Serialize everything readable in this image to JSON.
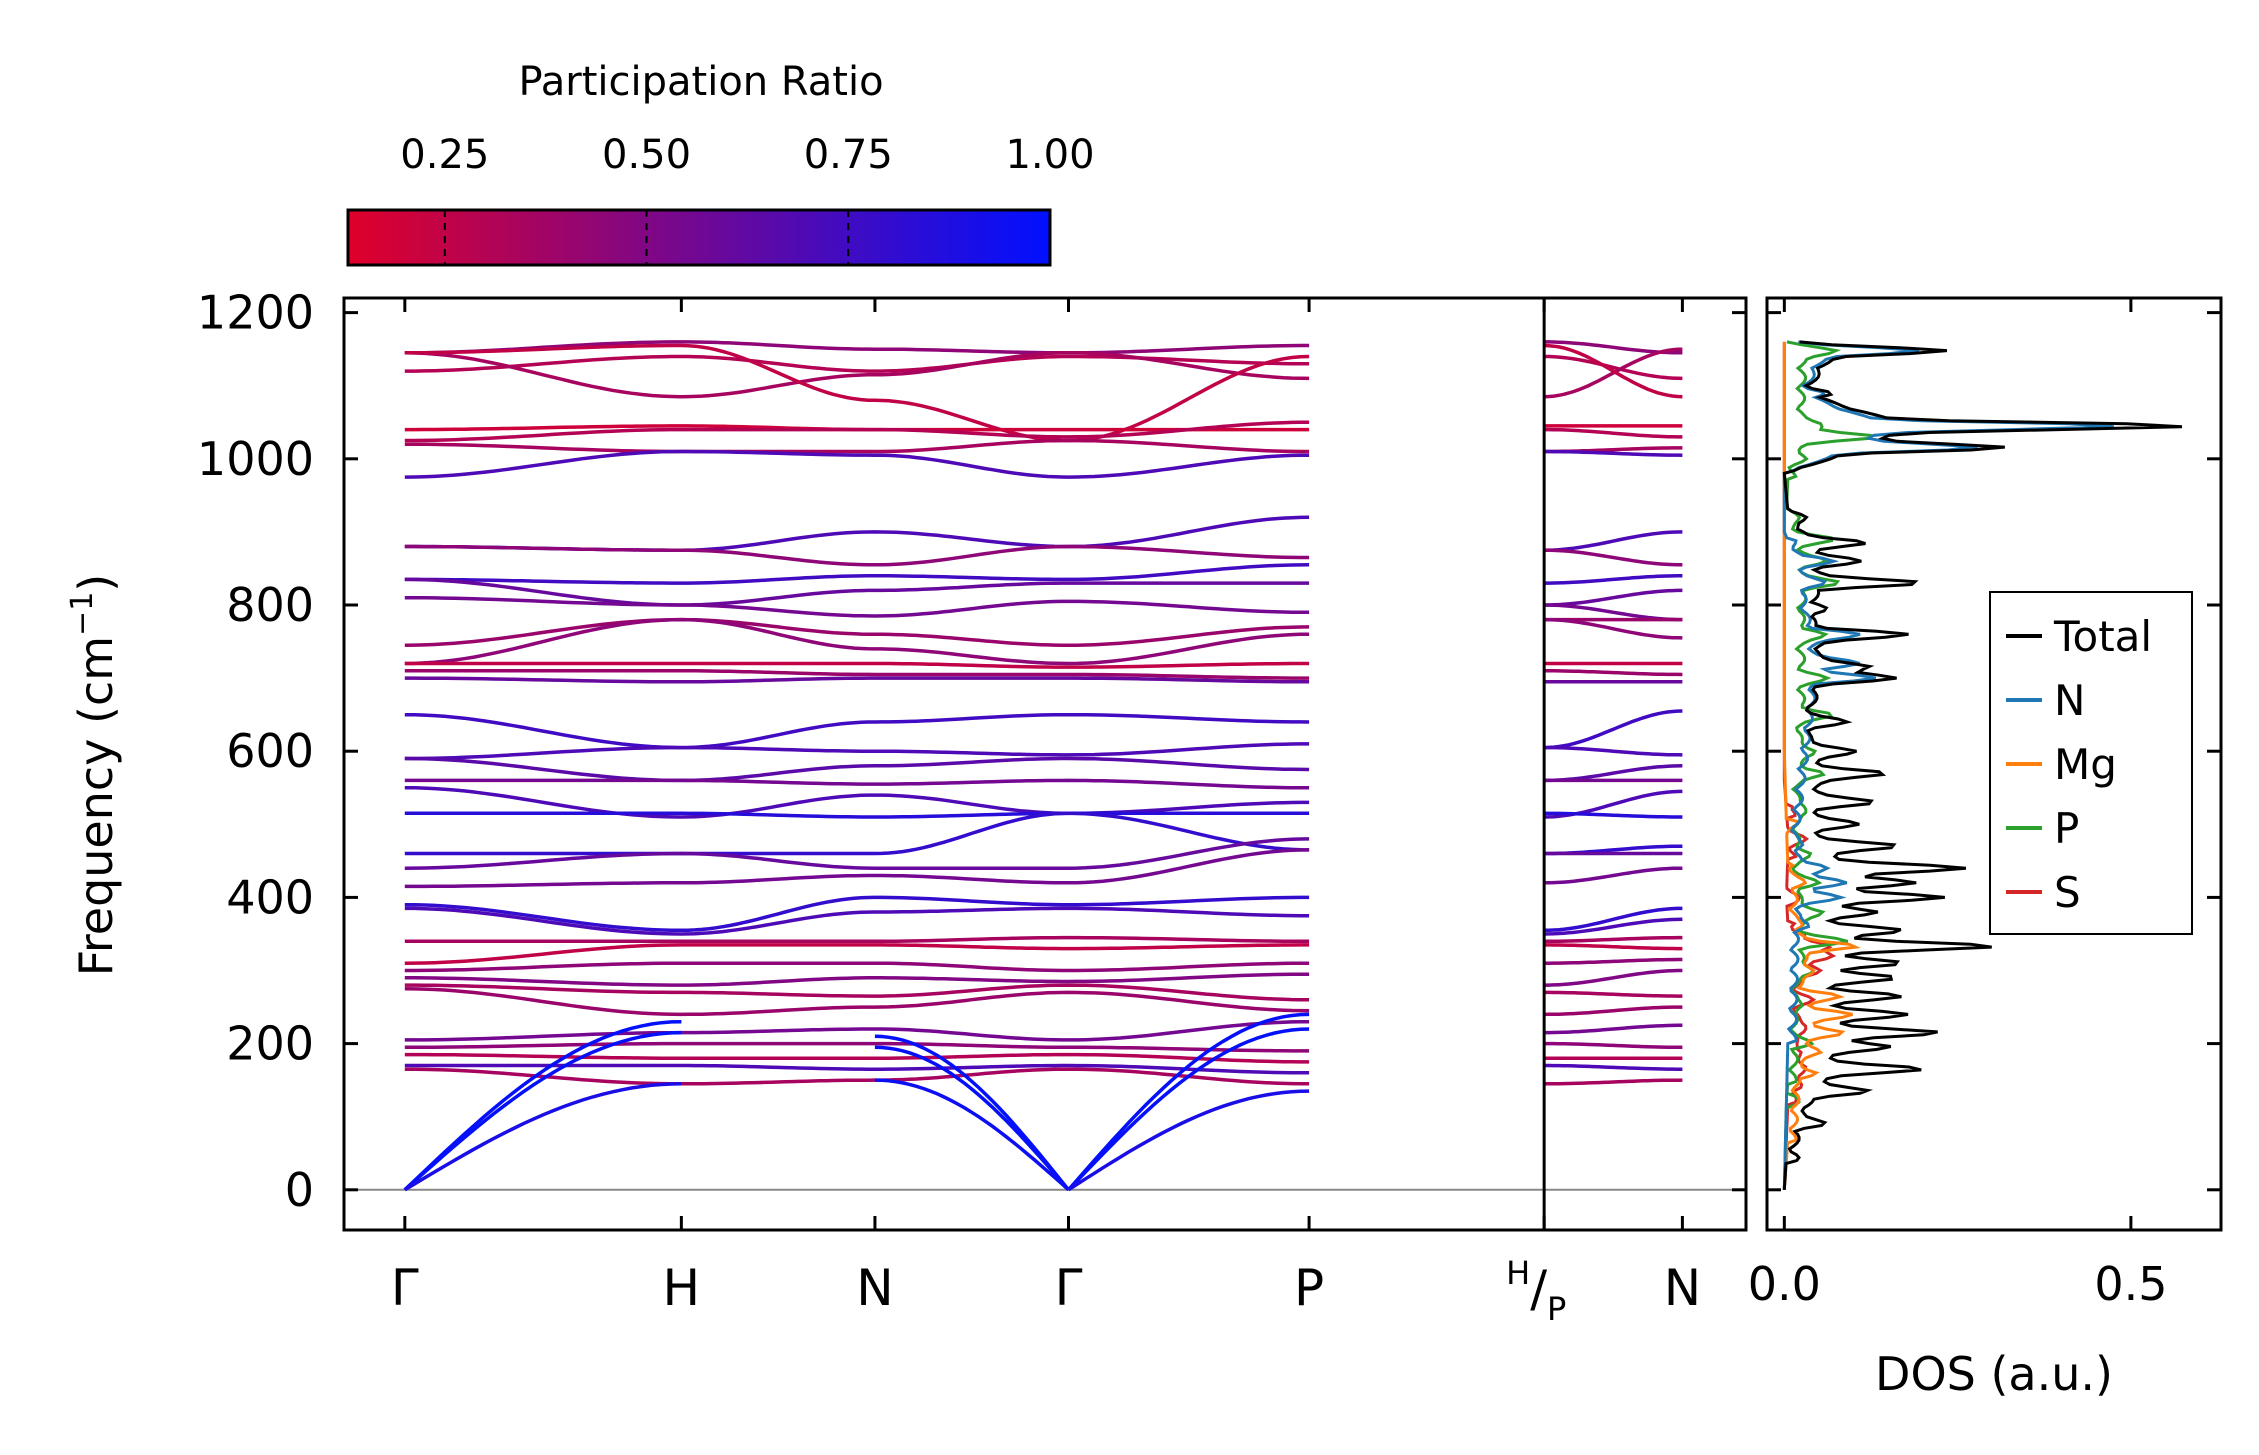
{
  "chart_data": [
    {
      "type": "line",
      "subtype": "phonon-band-structure",
      "ylabel": "Frequency (cm",
      "ylabel_sup": "−1",
      "ylabel_suffix": ")",
      "ylim": [
        -55,
        1220
      ],
      "yticks": [
        0,
        200,
        400,
        600,
        800,
        1000,
        1200
      ],
      "kpoints": [
        {
          "label": "Γ",
          "x": 0.0
        },
        {
          "label": "H",
          "x": 1.0
        },
        {
          "label": "N",
          "x": 1.7
        },
        {
          "label": "Γ",
          "x": 2.4
        },
        {
          "label": "P",
          "x": 3.27
        },
        {
          "label": "",
          "x": 4.12
        },
        {
          "label": "N",
          "x": 4.62
        }
      ],
      "special_label": {
        "sup": "H",
        "sep": "/",
        "sub": "P",
        "x": 4.12
      },
      "xlim": [
        -0.22,
        4.85
      ],
      "colorbar": {
        "title": "Participation Ratio",
        "ticks": [
          0.25,
          0.5,
          0.75,
          1.0
        ],
        "tick_labels": [
          "0.25",
          "0.50",
          "0.75",
          "1.00"
        ],
        "range": [
          0.13,
          1.0
        ],
        "color_low": "#e0002a",
        "color_high": "#0010ff"
      },
      "acoustic_branches": [
        {
          "seg": "Γ-H",
          "start": 0,
          "end": 230,
          "pr": 0.98
        },
        {
          "seg": "Γ-H",
          "start": 0,
          "end": 215,
          "pr": 0.98
        },
        {
          "seg": "Γ-H",
          "start": 0,
          "end": 145,
          "pr": 0.9
        },
        {
          "seg": "N-Γ",
          "start": 210,
          "end": 0,
          "pr": 0.98
        },
        {
          "seg": "N-Γ",
          "start": 195,
          "end": 0,
          "pr": 0.98
        },
        {
          "seg": "N-Γ",
          "start": 150,
          "end": 0,
          "pr": 0.95
        },
        {
          "seg": "Γ-P",
          "start": 0,
          "end": 240,
          "pr": 0.98
        },
        {
          "seg": "Γ-P",
          "start": 0,
          "end": 220,
          "pr": 0.98
        },
        {
          "seg": "Γ-P",
          "start": 0,
          "end": 135,
          "pr": 0.9
        }
      ],
      "optical_branches": [
        {
          "f": [
            1145,
            1160,
            1150,
            1145,
            1155,
            1145
          ],
          "pr": 0.45
        },
        {
          "f": [
            1120,
            1140,
            1120,
            1140,
            1130,
            1110
          ],
          "pr": 0.3
        },
        {
          "f": [
            1145,
            1085,
            1115,
            1145,
            1110,
            1150
          ],
          "pr": 0.35
        },
        {
          "f": [
            1145,
            1155,
            1080,
            1025,
            1140,
            1085
          ],
          "pr": 0.25
        },
        {
          "f": [
            1040,
            1045,
            1040,
            1040,
            1040,
            1045
          ],
          "pr": 0.2
        },
        {
          "f": [
            1025,
            1040,
            1040,
            1030,
            1050,
            1030
          ],
          "pr": 0.3
        },
        {
          "f": [
            1020,
            1010,
            1010,
            1025,
            1010,
            1015
          ],
          "pr": 0.35
        },
        {
          "f": [
            975,
            1010,
            1005,
            975,
            1005,
            1005
          ],
          "pr": 0.7
        },
        {
          "f": [
            880,
            875,
            900,
            880,
            920,
            900
          ],
          "pr": 0.7
        },
        {
          "f": [
            880,
            875,
            855,
            880,
            865,
            855
          ],
          "pr": 0.45
        },
        {
          "f": [
            835,
            830,
            840,
            835,
            855,
            840
          ],
          "pr": 0.75
        },
        {
          "f": [
            835,
            800,
            820,
            830,
            830,
            820
          ],
          "pr": 0.6
        },
        {
          "f": [
            810,
            800,
            785,
            805,
            790,
            780
          ],
          "pr": 0.55
        },
        {
          "f": [
            745,
            780,
            760,
            745,
            770,
            780
          ],
          "pr": 0.4
        },
        {
          "f": [
            720,
            780,
            740,
            720,
            760,
            755
          ],
          "pr": 0.45
        },
        {
          "f": [
            720,
            720,
            720,
            715,
            720,
            720
          ],
          "pr": 0.25
        },
        {
          "f": [
            710,
            710,
            705,
            705,
            700,
            705
          ],
          "pr": 0.4
        },
        {
          "f": [
            700,
            695,
            700,
            700,
            695,
            695
          ],
          "pr": 0.6
        },
        {
          "f": [
            650,
            605,
            640,
            650,
            640,
            655
          ],
          "pr": 0.75
        },
        {
          "f": [
            590,
            605,
            600,
            595,
            610,
            595
          ],
          "pr": 0.7
        },
        {
          "f": [
            590,
            560,
            580,
            590,
            575,
            580
          ],
          "pr": 0.65
        },
        {
          "f": [
            560,
            560,
            555,
            560,
            550,
            560
          ],
          "pr": 0.55
        },
        {
          "f": [
            550,
            510,
            540,
            515,
            530,
            545
          ],
          "pr": 0.7
        },
        {
          "f": [
            515,
            515,
            510,
            515,
            515,
            510
          ],
          "pr": 0.85
        },
        {
          "f": [
            460,
            460,
            460,
            515,
            465,
            470
          ],
          "pr": 0.8
        },
        {
          "f": [
            440,
            460,
            440,
            440,
            480,
            460
          ],
          "pr": 0.6
        },
        {
          "f": [
            415,
            420,
            430,
            420,
            465,
            440
          ],
          "pr": 0.55
        },
        {
          "f": [
            390,
            355,
            400,
            390,
            400,
            385
          ],
          "pr": 0.8
        },
        {
          "f": [
            385,
            350,
            380,
            385,
            375,
            370
          ],
          "pr": 0.7
        },
        {
          "f": [
            340,
            340,
            340,
            345,
            340,
            345
          ],
          "pr": 0.35
        },
        {
          "f": [
            310,
            335,
            335,
            330,
            335,
            330
          ],
          "pr": 0.25
        },
        {
          "f": [
            300,
            310,
            310,
            300,
            310,
            315
          ],
          "pr": 0.45
        },
        {
          "f": [
            290,
            280,
            290,
            285,
            295,
            300
          ],
          "pr": 0.5
        },
        {
          "f": [
            280,
            270,
            265,
            280,
            260,
            265
          ],
          "pr": 0.35
        },
        {
          "f": [
            275,
            240,
            250,
            270,
            245,
            250
          ],
          "pr": 0.4
        },
        {
          "f": [
            205,
            215,
            220,
            205,
            230,
            225
          ],
          "pr": 0.55
        },
        {
          "f": [
            195,
            200,
            200,
            195,
            190,
            195
          ],
          "pr": 0.45
        },
        {
          "f": [
            185,
            180,
            180,
            185,
            175,
            180
          ],
          "pr": 0.3
        },
        {
          "f": [
            170,
            170,
            165,
            170,
            160,
            165
          ],
          "pr": 0.7
        },
        {
          "f": [
            165,
            145,
            150,
            165,
            145,
            150
          ],
          "pr": 0.35
        }
      ]
    },
    {
      "type": "line",
      "subtype": "density-of-states",
      "xlabel": "DOS (a.u.)",
      "xlim": [
        -0.025,
        0.63
      ],
      "xticks": [
        0.0,
        0.5
      ],
      "xtick_labels": [
        "0.0",
        "0.5"
      ],
      "ylim": [
        -55,
        1220
      ],
      "legend": {
        "placement": "right"
      },
      "series": [
        {
          "name": "Total",
          "color": "#000000",
          "peaks": [
            [
              0,
              0.0
            ],
            [
              45,
              0.01
            ],
            [
              90,
              0.05
            ],
            [
              135,
              0.12
            ],
            [
              165,
              0.2
            ],
            [
              195,
              0.15
            ],
            [
              215,
              0.22
            ],
            [
              240,
              0.17
            ],
            [
              265,
              0.16
            ],
            [
              290,
              0.15
            ],
            [
              310,
              0.16
            ],
            [
              333,
              0.3
            ],
            [
              355,
              0.17
            ],
            [
              380,
              0.13
            ],
            [
              400,
              0.22
            ],
            [
              420,
              0.18
            ],
            [
              440,
              0.26
            ],
            [
              470,
              0.16
            ],
            [
              500,
              0.1
            ],
            [
              530,
              0.12
            ],
            [
              570,
              0.14
            ],
            [
              600,
              0.1
            ],
            [
              640,
              0.08
            ],
            [
              700,
              0.15
            ],
            [
              715,
              0.12
            ],
            [
              760,
              0.17
            ],
            [
              795,
              0.06
            ],
            [
              830,
              0.19
            ],
            [
              860,
              0.1
            ],
            [
              885,
              0.11
            ],
            [
              920,
              0.02
            ],
            [
              980,
              0.0
            ],
            [
              1015,
              0.32
            ],
            [
              1045,
              0.58
            ],
            [
              1090,
              0.06
            ],
            [
              1148,
              0.23
            ],
            [
              1160,
              0.0
            ]
          ]
        },
        {
          "name": "N",
          "color": "#1f77b4",
          "peaks": [
            [
              0,
              0.0
            ],
            [
              360,
              0.03
            ],
            [
              400,
              0.07
            ],
            [
              420,
              0.08
            ],
            [
              440,
              0.06
            ],
            [
              470,
              0.02
            ],
            [
              700,
              0.12
            ],
            [
              720,
              0.1
            ],
            [
              760,
              0.1
            ],
            [
              830,
              0.05
            ],
            [
              860,
              0.06
            ],
            [
              900,
              0.0
            ],
            [
              980,
              0.0
            ],
            [
              1015,
              0.28
            ],
            [
              1045,
              0.48
            ],
            [
              1090,
              0.05
            ],
            [
              1148,
              0.19
            ],
            [
              1160,
              0.0
            ]
          ]
        },
        {
          "name": "Mg",
          "color": "#ff7f0e",
          "peaks": [
            [
              0,
              0.0
            ],
            [
              160,
              0.04
            ],
            [
              190,
              0.05
            ],
            [
              215,
              0.08
            ],
            [
              240,
              0.09
            ],
            [
              265,
              0.07
            ],
            [
              300,
              0.04
            ],
            [
              333,
              0.1
            ],
            [
              360,
              0.02
            ],
            [
              420,
              0.02
            ],
            [
              500,
              0.01
            ],
            [
              600,
              0.0
            ],
            [
              1160,
              0.0
            ]
          ]
        },
        {
          "name": "P",
          "color": "#2ca02c",
          "peaks": [
            [
              0,
              0.0
            ],
            [
              120,
              0.01
            ],
            [
              200,
              0.03
            ],
            [
              250,
              0.02
            ],
            [
              300,
              0.04
            ],
            [
              340,
              0.08
            ],
            [
              380,
              0.05
            ],
            [
              420,
              0.04
            ],
            [
              460,
              0.03
            ],
            [
              520,
              0.03
            ],
            [
              570,
              0.05
            ],
            [
              600,
              0.04
            ],
            [
              650,
              0.06
            ],
            [
              700,
              0.05
            ],
            [
              760,
              0.05
            ],
            [
              830,
              0.07
            ],
            [
              860,
              0.05
            ],
            [
              890,
              0.06
            ],
            [
              920,
              0.01
            ],
            [
              1000,
              0.02
            ],
            [
              1030,
              0.12
            ],
            [
              1045,
              0.05
            ],
            [
              1148,
              0.07
            ],
            [
              1160,
              0.0
            ]
          ]
        },
        {
          "name": "S",
          "color": "#d62728",
          "peaks": [
            [
              0,
              0.0
            ],
            [
              140,
              0.02
            ],
            [
              165,
              0.03
            ],
            [
              190,
              0.02
            ],
            [
              220,
              0.03
            ],
            [
              260,
              0.03
            ],
            [
              300,
              0.05
            ],
            [
              320,
              0.06
            ],
            [
              333,
              0.06
            ],
            [
              350,
              0.02
            ],
            [
              400,
              0.01
            ],
            [
              480,
              0.02
            ],
            [
              520,
              0.01
            ],
            [
              560,
              0.0
            ],
            [
              1160,
              0.0
            ]
          ]
        }
      ]
    }
  ]
}
